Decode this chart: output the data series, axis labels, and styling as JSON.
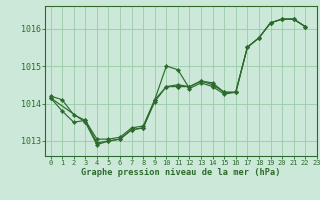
{
  "xlabel": "Graphe pression niveau de la mer (hPa)",
  "background_color": "#cce8d8",
  "grid_color": "#99ccaa",
  "line_color": "#2d6b2d",
  "ylim": [
    1012.6,
    1016.6
  ],
  "xlim": [
    -0.5,
    23
  ],
  "yticks": [
    1013,
    1014,
    1015,
    1016
  ],
  "xticks": [
    0,
    1,
    2,
    3,
    4,
    5,
    6,
    7,
    8,
    9,
    10,
    11,
    12,
    13,
    14,
    15,
    16,
    17,
    18,
    19,
    20,
    21,
    22,
    23
  ],
  "series": [
    {
      "x": [
        0,
        1,
        2,
        3,
        4,
        5,
        6,
        7,
        8,
        9,
        10,
        11,
        12,
        13,
        14,
        15,
        16,
        17,
        18,
        19,
        20,
        21,
        22
      ],
      "y": [
        1014.2,
        1014.1,
        1013.7,
        1013.55,
        1012.95,
        1013.0,
        1013.05,
        1013.3,
        1013.35,
        1014.1,
        1015.0,
        1014.9,
        1014.4,
        1014.55,
        1014.45,
        1014.25,
        1014.3,
        1015.5,
        1015.75,
        1016.15,
        1016.25,
        1016.25,
        1016.05
      ]
    },
    {
      "x": [
        0,
        3,
        4,
        5,
        6,
        7,
        8,
        9,
        10,
        11
      ],
      "y": [
        1014.15,
        1013.5,
        1012.9,
        1013.0,
        1013.05,
        1013.3,
        1013.35,
        1014.05,
        1014.45,
        1014.45
      ]
    },
    {
      "x": [
        11,
        12,
        13,
        14,
        15,
        16,
        17,
        18,
        19,
        20,
        21,
        22
      ],
      "y": [
        1014.45,
        1014.45,
        1014.6,
        1014.55,
        1014.3,
        1014.3,
        1015.5,
        1015.75,
        1016.15,
        1016.25,
        1016.25,
        1016.05
      ]
    },
    {
      "x": [
        0,
        1,
        2,
        3,
        4,
        5,
        6,
        7,
        8,
        9,
        10,
        11,
        12,
        13,
        14,
        15,
        16,
        17,
        18,
        19,
        20,
        21,
        22
      ],
      "y": [
        1014.15,
        1013.8,
        1013.5,
        1013.55,
        1013.05,
        1013.05,
        1013.1,
        1013.35,
        1013.4,
        1014.1,
        1014.45,
        1014.5,
        1014.45,
        1014.6,
        1014.5,
        1014.3,
        1014.3,
        1015.5,
        1015.75,
        1016.15,
        1016.25,
        1016.25,
        1016.05
      ]
    }
  ]
}
